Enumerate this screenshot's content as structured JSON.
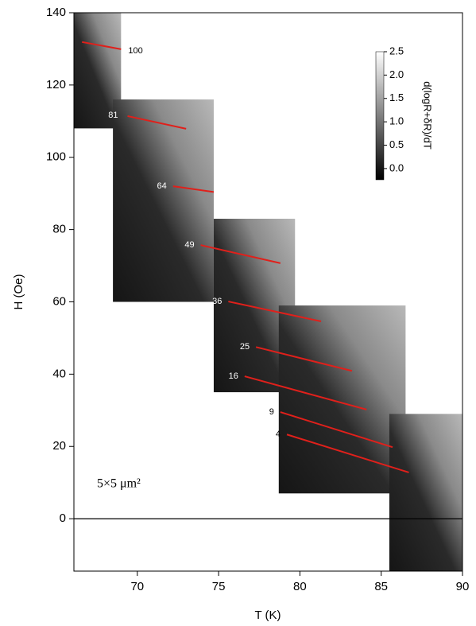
{
  "chart_data": {
    "type": "line",
    "xlabel": "T (K)",
    "ylabel": "H (Oe)",
    "annotation": "5×5 μm²",
    "xlim": [
      66.1,
      90
    ],
    "xticks": [
      70,
      75,
      80,
      85,
      90
    ],
    "ylim": [
      -14.5,
      140
    ],
    "yticks": [
      0,
      20,
      40,
      60,
      80,
      100,
      120,
      140
    ],
    "image_regions": [
      {
        "x": [
          66.1,
          69.0
        ],
        "y": [
          108,
          140
        ]
      },
      {
        "x": [
          68.5,
          74.7
        ],
        "y": [
          60,
          116
        ]
      },
      {
        "x": [
          74.7,
          79.7
        ],
        "y": [
          35,
          83
        ]
      },
      {
        "x": [
          78.7,
          86.5
        ],
        "y": [
          7,
          59
        ]
      },
      {
        "x": [
          85.5,
          90.0
        ],
        "y": [
          -14.5,
          29
        ]
      }
    ],
    "colorbar": {
      "label": "d(logR+δR)/dT",
      "lim": [
        -0.24,
        2.5
      ],
      "ticks": [
        {
          "value": 0,
          "label": "0.0"
        },
        0.5,
        {
          "value": 1,
          "label": "1.0"
        },
        1.5,
        {
          "value": 2,
          "label": "2.0"
        },
        2.5
      ]
    },
    "series": [
      {
        "name": "100",
        "color": "#e0201b",
        "x": [
          66.6,
          69.0
        ],
        "values": [
          131.9,
          129.9
        ]
      },
      {
        "name": "81",
        "color": "#e0201b",
        "x": [
          69.4,
          73.0
        ],
        "values": [
          111.4,
          107.9
        ]
      },
      {
        "name": "64",
        "color": "#e0201b",
        "x": [
          72.2,
          74.7
        ],
        "values": [
          92.0,
          90.4
        ]
      },
      {
        "name": "49",
        "color": "#e0201b",
        "x": [
          73.9,
          78.8
        ],
        "values": [
          75.7,
          70.7
        ]
      },
      {
        "name": "36",
        "color": "#e0201b",
        "x": [
          75.6,
          81.3
        ],
        "values": [
          60.1,
          54.6
        ]
      },
      {
        "name": "25",
        "color": "#e0201b",
        "x": [
          77.3,
          83.2
        ],
        "values": [
          47.5,
          40.9
        ]
      },
      {
        "name": "16",
        "color": "#e0201b",
        "x": [
          76.6,
          84.1
        ],
        "values": [
          39.4,
          30.2
        ]
      },
      {
        "name": "9",
        "color": "#e0201b",
        "x": [
          78.8,
          85.7
        ],
        "values": [
          29.5,
          19.8
        ]
      },
      {
        "name": "4",
        "color": "#e0201b",
        "x": [
          79.2,
          86.7
        ],
        "values": [
          23.3,
          12.8
        ]
      }
    ]
  }
}
